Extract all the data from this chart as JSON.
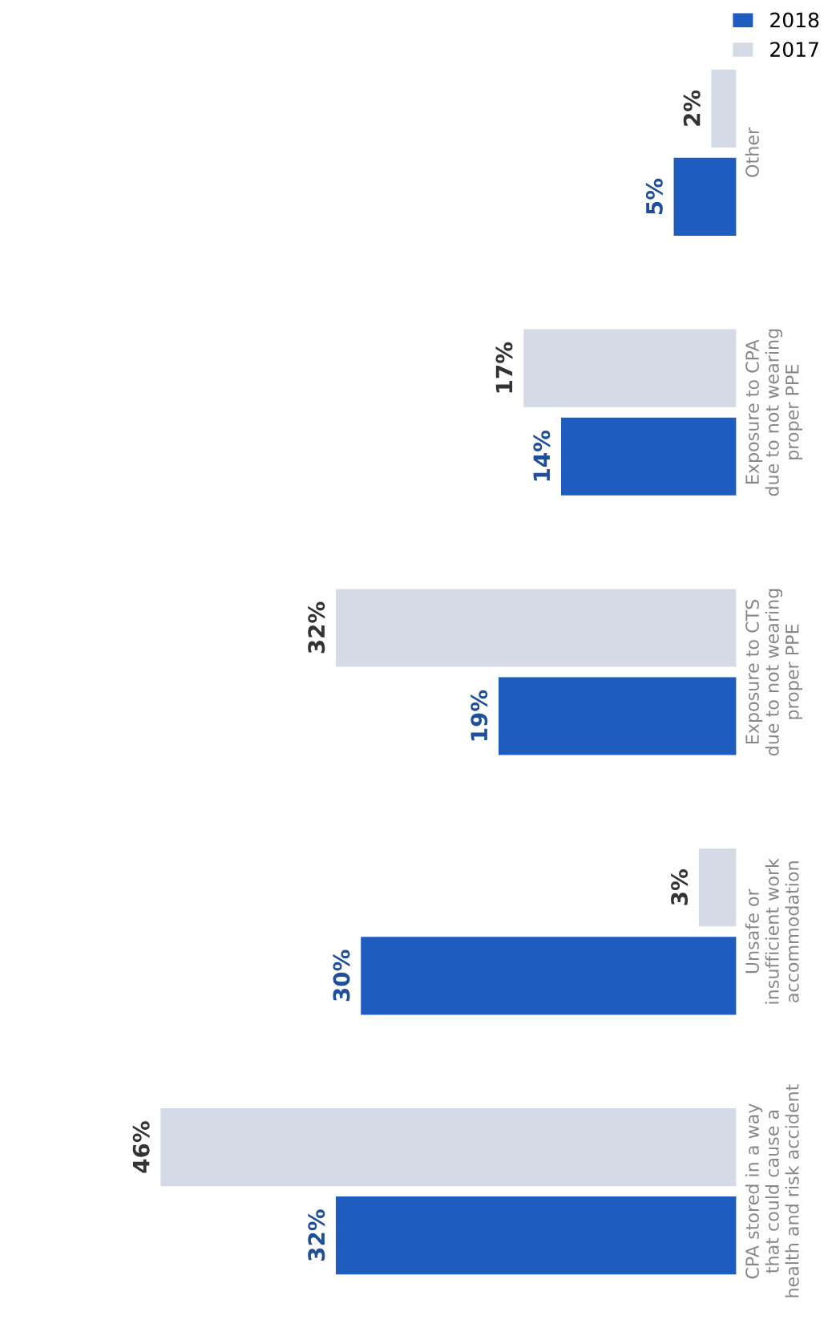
{
  "chart_data": {
    "type": "bar",
    "orientation": "horizontal",
    "categories": [
      "Other",
      "Exposure to CPA\ndue to not wearing\nproper PPE",
      "Exposure to CTS\ndue to not wearing\nproper PPE",
      "Unsafe or\ninsufficient work\naccommodation",
      "CPA stored in a way\nthat could cause a\nhealth and risk accident"
    ],
    "series": [
      {
        "name": "2018",
        "color": "#1f5cc0",
        "values": [
          5,
          14,
          19,
          30,
          32
        ],
        "value_labels": [
          "5%",
          "14%",
          "19%",
          "30%",
          "32%"
        ]
      },
      {
        "name": "2017",
        "color": "#d5dbe6",
        "values": [
          2,
          17,
          32,
          3,
          46
        ],
        "value_labels": [
          "2%",
          "17%",
          "32%",
          "3%",
          "46%"
        ]
      }
    ],
    "legend": "top right"
  }
}
